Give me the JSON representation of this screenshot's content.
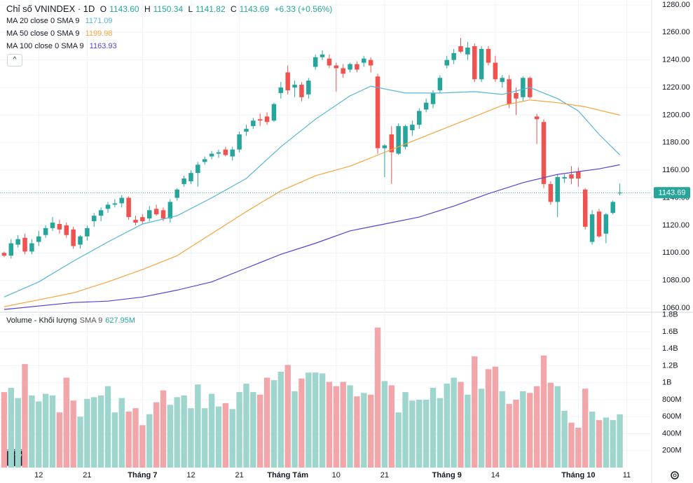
{
  "chart_data": [
    {
      "type": "candlestick",
      "title": "Chỉ số VNINDEX · 1D",
      "last_bar": [
        {
          "label": "O",
          "value": "1143.60"
        },
        {
          "label": "H",
          "value": "1150.34"
        },
        {
          "label": "L",
          "value": "1141.82"
        },
        {
          "label": "C",
          "value": "1143.69"
        }
      ],
      "change": "+6.33 (+0.56%)",
      "up_color": "#26a69a",
      "down_color": "#ef5350",
      "xlim": [
        -0.6,
        93.6
      ],
      "ylim": [
        1057,
        1283.5
      ],
      "yticks": [
        {
          "value": 1060,
          "label": "1060.00"
        },
        {
          "value": 1080,
          "label": "1080.00"
        },
        {
          "value": 1100,
          "label": "1100.00"
        },
        {
          "value": 1120,
          "label": "1120.00"
        },
        {
          "value": 1140,
          "label": "1140.00"
        },
        {
          "value": 1160,
          "label": "1160.00"
        },
        {
          "value": 1180,
          "label": "1180.00"
        },
        {
          "value": 1200,
          "label": "1200.00"
        },
        {
          "value": 1220,
          "label": "1220.00"
        },
        {
          "value": 1240,
          "label": "1240.00"
        },
        {
          "value": 1260,
          "label": "1260.00"
        },
        {
          "value": 1280,
          "label": "1280.00"
        }
      ],
      "open": [
        1100,
        1098,
        1106,
        1111,
        1101,
        1108,
        1113,
        1118,
        1121,
        1120,
        1117,
        1106,
        1112,
        1123,
        1127,
        1132,
        1135,
        1136,
        1140,
        1124,
        1126,
        1125,
        1132,
        1131,
        1125,
        1140,
        1150,
        1152,
        1158,
        1166,
        1170,
        1172,
        1175,
        1170,
        1175,
        1188,
        1192,
        1197,
        1199,
        1196,
        1216,
        1231,
        1220,
        1222,
        1215,
        1235,
        1242,
        1241,
        1236,
        1234,
        1233,
        1237,
        1238,
        1240,
        1228,
        1176,
        1186,
        1172,
        1177,
        1189,
        1193,
        1204,
        1208,
        1218,
        1236,
        1240,
        1250,
        1244,
        1250,
        1226,
        1248,
        1238,
        1224,
        1226,
        1216,
        1213,
        1227,
        1199,
        1195,
        1150,
        1137,
        1154,
        1157,
        1159,
        1146,
        1108,
        1130,
        1114,
        1129,
        1143.6
      ],
      "high": [
        1101,
        1110,
        1113,
        1114,
        1110,
        1116,
        1120,
        1126,
        1124,
        1122,
        1119,
        1113,
        1120,
        1129,
        1133,
        1137,
        1139,
        1142,
        1141,
        1127,
        1128,
        1134,
        1135,
        1133,
        1139,
        1147,
        1156,
        1160,
        1166,
        1170,
        1174,
        1175,
        1177,
        1177,
        1188,
        1193,
        1198,
        1201,
        1202,
        1209,
        1224,
        1236,
        1225,
        1224,
        1227,
        1244,
        1247,
        1244,
        1238,
        1237,
        1238,
        1239,
        1243,
        1242,
        1230,
        1179,
        1192,
        1194,
        1193,
        1196,
        1205,
        1212,
        1218,
        1229,
        1243,
        1248,
        1256,
        1253,
        1252,
        1250,
        1250,
        1243,
        1229,
        1229,
        1220,
        1228,
        1228,
        1201,
        1197,
        1152,
        1157,
        1157,
        1163,
        1162,
        1147,
        1131,
        1132,
        1129,
        1138,
        1150.34
      ],
      "low": [
        1097,
        1096,
        1104,
        1099,
        1099,
        1105,
        1111,
        1116,
        1114,
        1111,
        1103,
        1103,
        1109,
        1119,
        1123,
        1129,
        1133,
        1133,
        1124,
        1120,
        1121,
        1123,
        1127,
        1123,
        1122,
        1138,
        1148,
        1150,
        1148,
        1164,
        1168,
        1169,
        1170,
        1167,
        1173,
        1185,
        1190,
        1192,
        1193,
        1195,
        1212,
        1215,
        1213,
        1210,
        1212,
        1233,
        1240,
        1234,
        1217,
        1227,
        1231,
        1231,
        1235,
        1231,
        1172,
        1155,
        1150,
        1171,
        1175,
        1185,
        1190,
        1202,
        1205,
        1216,
        1234,
        1237,
        1245,
        1240,
        1224,
        1224,
        1236,
        1224,
        1220,
        1205,
        1200,
        1210,
        1212,
        1179,
        1147,
        1135,
        1126,
        1151,
        1150,
        1148,
        1117,
        1106,
        1111,
        1107,
        1128,
        1141.82
      ],
      "close": [
        1098,
        1107,
        1110,
        1101,
        1107,
        1112,
        1118,
        1122,
        1117,
        1113,
        1105,
        1112,
        1118,
        1127,
        1131,
        1135,
        1136,
        1140,
        1126,
        1122,
        1123,
        1131,
        1128,
        1125,
        1137,
        1146,
        1154,
        1158,
        1164,
        1168,
        1172,
        1173,
        1171,
        1175,
        1186,
        1190,
        1196,
        1196,
        1195,
        1208,
        1220,
        1218,
        1222,
        1213,
        1225,
        1242,
        1244,
        1236,
        1234,
        1230,
        1237,
        1233,
        1241,
        1236,
        1176,
        1178,
        1173,
        1192,
        1192,
        1193,
        1203,
        1209,
        1216,
        1227,
        1240,
        1245,
        1246,
        1249,
        1226,
        1248,
        1238,
        1226,
        1227,
        1208,
        1212,
        1227,
        1213,
        1197,
        1150,
        1137,
        1155,
        1155,
        1154,
        1154,
        1119,
        1128,
        1112,
        1128,
        1137,
        1143.69
      ],
      "series": [
        {
          "name": "MA 20 close 0 SMA 9",
          "color": "#55b6d8",
          "x": [
            0,
            5,
            10,
            15,
            20,
            25,
            30,
            35,
            40,
            45,
            50,
            53,
            58,
            63,
            68,
            72,
            76,
            80,
            83,
            86,
            89
          ],
          "values": [
            1068,
            1079,
            1094,
            1108,
            1121,
            1127,
            1140,
            1154,
            1177,
            1197,
            1214,
            1221,
            1216,
            1216,
            1217,
            1215,
            1220,
            1212,
            1203,
            1186,
            1171.09
          ]
        },
        {
          "name": "MA 50 close 0 SMA 9",
          "color": "#f5a53c",
          "x": [
            0,
            5,
            10,
            15,
            20,
            25,
            30,
            35,
            40,
            45,
            50,
            53,
            58,
            63,
            68,
            72,
            76,
            80,
            84,
            89
          ],
          "values": [
            1061,
            1066,
            1071,
            1079,
            1088,
            1098,
            1114,
            1130,
            1145,
            1156,
            1163,
            1169,
            1179,
            1189,
            1199,
            1207,
            1211,
            1209,
            1206,
            1199.98
          ]
        },
        {
          "name": "MA 100 close 0 SMA 9",
          "color": "#5b3fd1",
          "x": [
            0,
            10,
            15,
            20,
            25,
            30,
            35,
            40,
            45,
            50,
            55,
            60,
            65,
            70,
            75,
            80,
            86,
            89
          ],
          "values": [
            1059,
            1064,
            1065,
            1068,
            1073,
            1079,
            1089,
            1099,
            1107,
            1116,
            1121,
            1126,
            1134,
            1143,
            1151,
            1157,
            1161,
            1163.93
          ]
        }
      ]
    },
    {
      "type": "bar",
      "title": "Volume - Khối lượng",
      "subtitle": "SMA 9",
      "legend_value": "627.95M",
      "up_color": "#9ed6cd",
      "down_color": "#f2a6aa",
      "xlim": [
        -0.6,
        93.6
      ],
      "ylim": [
        0,
        1823
      ],
      "yticks": [
        {
          "value": 200,
          "label": "200M"
        },
        {
          "value": 400,
          "label": "400M"
        },
        {
          "value": 600,
          "label": "600M"
        },
        {
          "value": 800,
          "label": "800M"
        },
        {
          "value": 1000,
          "label": "1B"
        },
        {
          "value": 1200,
          "label": "1.2B"
        },
        {
          "value": 1400,
          "label": "1.4B"
        },
        {
          "value": 1600,
          "label": "1.6B"
        },
        {
          "value": 1800,
          "label": "1.8B"
        }
      ],
      "xticks": [
        {
          "value": 5,
          "label": "12"
        },
        {
          "value": 12,
          "label": "21"
        },
        {
          "value": 20,
          "label": "Tháng 7"
        },
        {
          "value": 27,
          "label": "12"
        },
        {
          "value": 34,
          "label": "21"
        },
        {
          "value": 41,
          "label": "Tháng Tám"
        },
        {
          "value": 48,
          "label": "10"
        },
        {
          "value": 55,
          "label": "21"
        },
        {
          "value": 64,
          "label": "Tháng 9"
        },
        {
          "value": 71,
          "label": "14"
        },
        {
          "value": 83,
          "label": "Tháng 10"
        },
        {
          "value": 90,
          "label": "11"
        }
      ],
      "values": [
        890,
        940,
        820,
        1220,
        850,
        780,
        870,
        850,
        650,
        1060,
        790,
        600,
        810,
        830,
        850,
        960,
        650,
        820,
        660,
        700,
        500,
        630,
        770,
        910,
        740,
        830,
        850,
        700,
        980,
        700,
        870,
        720,
        760,
        690,
        890,
        990,
        890,
        860,
        1060,
        1030,
        1130,
        1210,
        900,
        1050,
        1120,
        1120,
        1110,
        1010,
        960,
        1010,
        970,
        840,
        880,
        860,
        1650,
        1020,
        970,
        650,
        890,
        790,
        800,
        800,
        940,
        820,
        990,
        1060,
        1010,
        860,
        1310,
        930,
        1160,
        1190,
        900,
        750,
        800,
        900,
        880,
        960,
        1320,
        1000,
        960,
        670,
        530,
        470,
        930,
        660,
        560,
        590,
        560,
        627.95
      ]
    }
  ]
}
